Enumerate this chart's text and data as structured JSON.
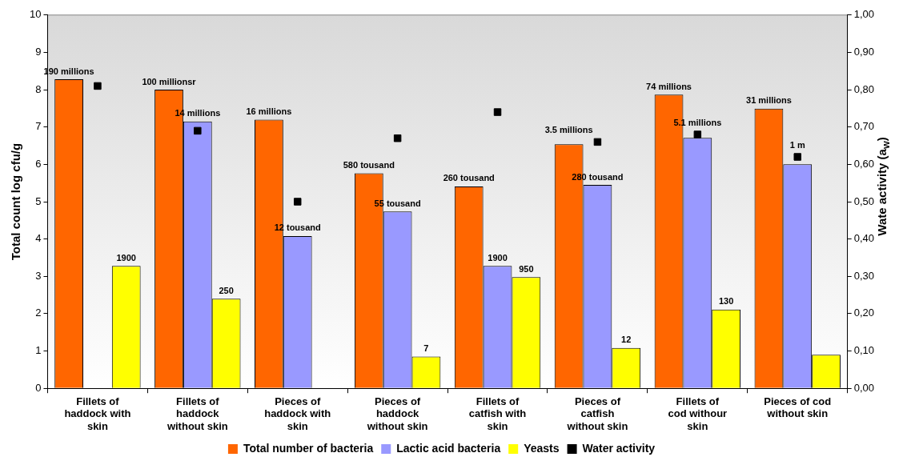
{
  "chart_data": {
    "type": "bar",
    "ylabel": "Total count log cfu/g",
    "y2label": "Wate activity (a$_{w}$)",
    "categories": [
      "Fillets of haddock with skin",
      "Fillets of haddock without skin",
      "Pieces of haddock with skin",
      "Pieces of haddock without skin",
      "Fillets of catfish with skin",
      "Pieces of catfish without skin",
      "Fillets of cod withour skin",
      "Pieces of cod without skin"
    ],
    "series": [
      {
        "name": "Total number of bacteria",
        "type": "bar",
        "color": "#ff6600",
        "values": [
          8.28,
          8.0,
          7.2,
          5.76,
          5.41,
          6.54,
          7.87,
          7.49
        ]
      },
      {
        "name": "Lactic acid bacteria",
        "type": "bar",
        "color": "#9999ff",
        "values": [
          null,
          7.15,
          4.08,
          4.74,
          3.28,
          5.45,
          6.71,
          6.0
        ]
      },
      {
        "name": "Yeasts",
        "type": "bar",
        "color": "#ffff00",
        "values": [
          3.28,
          2.4,
          null,
          0.85,
          2.98,
          1.08,
          2.11,
          0.9
        ]
      },
      {
        "name": "Water activity",
        "type": "scatter",
        "axis": "y2",
        "marker": "square",
        "color": "#000000",
        "values": [
          0.81,
          0.69,
          0.5,
          0.67,
          0.74,
          0.66,
          0.68,
          0.62
        ]
      }
    ],
    "annotations": [
      "190 millions",
      "1900",
      "100 millionsr",
      "14 millions",
      "250",
      "16 millions",
      "12 tousand",
      "580 tousand",
      "55 tousand",
      "7",
      "260 tousand",
      "1900",
      "950",
      "3.5 millions",
      "280 tousand",
      "12",
      "74 millions",
      "5.1 millions",
      "130",
      "31 millions",
      "1 m"
    ],
    "ylim": [
      0,
      10
    ],
    "yticks": [
      0,
      1,
      2,
      3,
      4,
      5,
      6,
      7,
      8,
      9,
      10
    ],
    "y2lim": [
      0,
      1
    ],
    "y2ticks": [
      {
        "value": 0,
        "label": "0,00"
      },
      {
        "value": 0.1,
        "label": "0,10"
      },
      {
        "value": 0.2,
        "label": "0,20"
      },
      {
        "value": 0.3,
        "label": "0,30"
      },
      {
        "value": 0.4,
        "label": "0,40"
      },
      {
        "value": 0.5,
        "label": "0,50"
      },
      {
        "value": 0.6,
        "label": "0,60"
      },
      {
        "value": 0.7,
        "label": "0,70"
      },
      {
        "value": 0.8,
        "label": "0,80"
      },
      {
        "value": 0.9,
        "label": "0,90"
      },
      {
        "value": 1,
        "label": "1,00"
      }
    ],
    "grid": false,
    "legend": "bottom"
  }
}
